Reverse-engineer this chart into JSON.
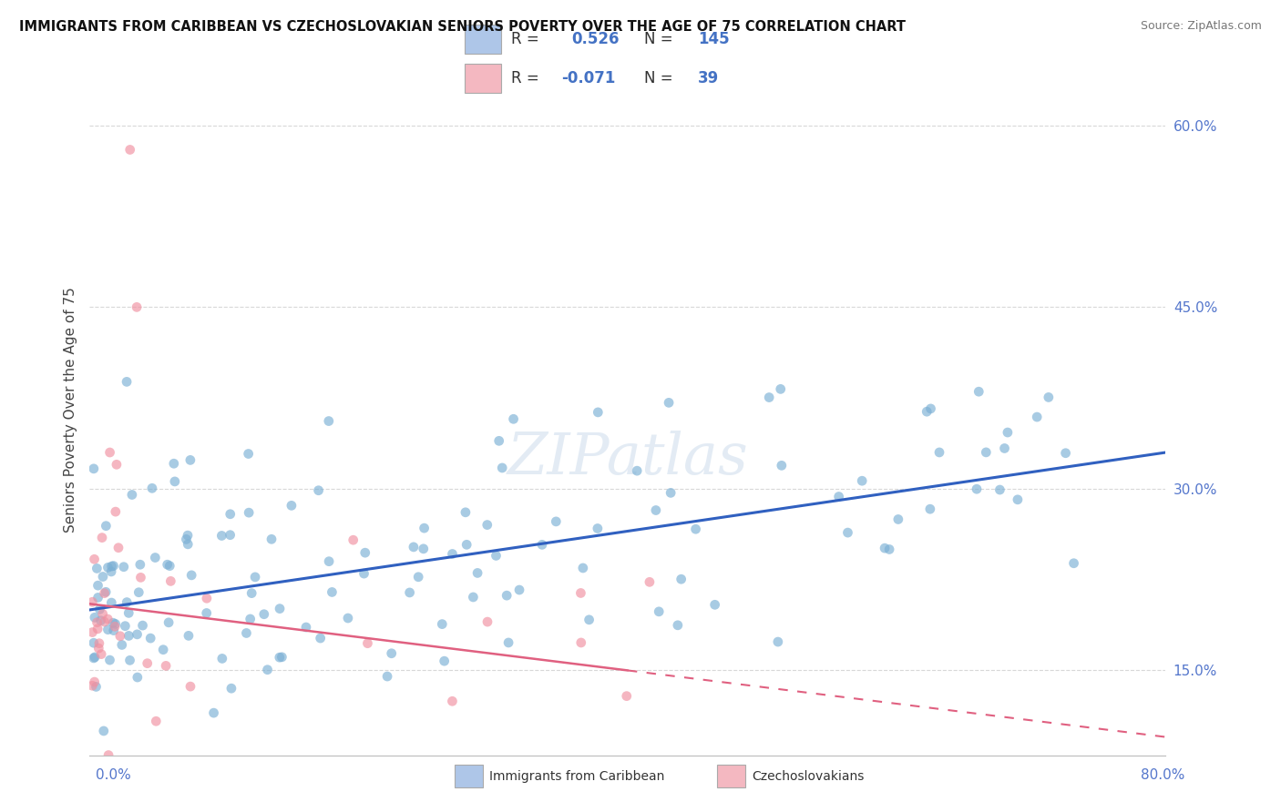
{
  "title": "IMMIGRANTS FROM CARIBBEAN VS CZECHOSLOVAKIAN SENIORS POVERTY OVER THE AGE OF 75 CORRELATION CHART",
  "source": "Source: ZipAtlas.com",
  "ylabel": "Seniors Poverty Over the Age of 75",
  "xmin": 0.0,
  "xmax": 80.0,
  "ymin": 8.0,
  "ymax": 65.0,
  "ytick_vals": [
    15,
    30,
    45,
    60
  ],
  "legend_color1": "#aec6e8",
  "legend_color2": "#f4b8c1",
  "blue_color": "#7aafd4",
  "pink_color": "#f090a0",
  "trendline_blue": "#3060c0",
  "trendline_pink": "#e06080",
  "background_color": "#ffffff",
  "grid_color": "#d8d8d8",
  "watermark_color": "#cddcec",
  "blue_R": 0.526,
  "blue_N": 145,
  "pink_R": -0.071,
  "pink_N": 39,
  "blue_trend_y0": 20.0,
  "blue_trend_y1": 33.0,
  "pink_trend_y0": 20.5,
  "pink_trend_y1": 9.5,
  "pink_solid_end_x": 40.0
}
